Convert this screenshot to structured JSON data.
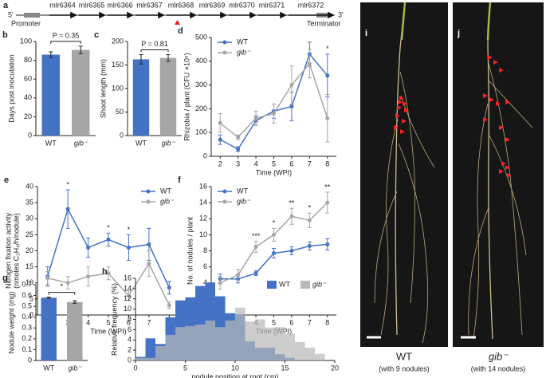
{
  "gene_map": {
    "panel": "a",
    "five_prime": "5'",
    "three_prime": "3'",
    "genes": [
      "mlr6364",
      "mlr6365",
      "mlr6366",
      "mlr6367",
      "mlr6368",
      "mlr6369",
      "mlr6370",
      "mlr6371",
      "mlr6372"
    ],
    "promoter": "Promoter",
    "terminator": "Terminator"
  },
  "chart_data": [
    {
      "panel": "b",
      "type": "bar",
      "categories": [
        "WT",
        "gib⁻"
      ],
      "values": [
        86,
        91
      ],
      "errors": [
        3,
        4
      ],
      "colors": [
        "#4472c4",
        "#a6a6a6"
      ],
      "ylabel": "Days post inoculation",
      "ylim": [
        0,
        100
      ],
      "yticks": [
        0,
        20,
        40,
        60,
        80,
        100
      ],
      "annotation": "P = 0.35"
    },
    {
      "panel": "c",
      "type": "bar",
      "categories": [
        "WT",
        "gib⁻"
      ],
      "values": [
        162,
        165
      ],
      "errors": [
        10,
        7
      ],
      "colors": [
        "#4472c4",
        "#a6a6a6"
      ],
      "ylabel": "Shoot length (mm)",
      "ylim": [
        0,
        200
      ],
      "yticks": [
        0,
        50,
        100,
        150,
        200
      ],
      "annotation": "P = 0.81"
    },
    {
      "panel": "d",
      "type": "line",
      "x": [
        2,
        3,
        4,
        5,
        6,
        7,
        8
      ],
      "series": [
        {
          "name": "WT",
          "color": "#4472c4",
          "values": [
            70,
            30,
            150,
            190,
            210,
            430,
            340
          ],
          "errors": [
            20,
            10,
            20,
            30,
            60,
            50,
            90
          ]
        },
        {
          "name": "gib⁻",
          "color": "#a6a6a6",
          "values": [
            140,
            80,
            160,
            180,
            300,
            390,
            160
          ],
          "errors": [
            40,
            10,
            30,
            40,
            80,
            60,
            100
          ]
        }
      ],
      "xlabel": "Time (WPI)",
      "ylabel": "Rhizobia / plant (CFU ×10⁵)",
      "xlim": [
        1.5,
        8.5
      ],
      "xticks": [
        2,
        3,
        4,
        5,
        6,
        7,
        8
      ],
      "ylim": [
        0,
        500
      ],
      "yticks": [
        0,
        100,
        200,
        300,
        400,
        500
      ],
      "legend": "upper left",
      "markers": [
        {
          "x": 8,
          "text": "*"
        }
      ]
    },
    {
      "panel": "e",
      "type": "line",
      "x": [
        2,
        3,
        4,
        5,
        6,
        7,
        8
      ],
      "series": [
        {
          "name": "WT",
          "color": "#4472c4",
          "values": [
            12,
            33,
            21,
            23.5,
            21,
            22,
            8.5
          ],
          "errors": [
            3,
            6,
            3,
            2,
            4,
            5,
            2
          ]
        },
        {
          "name": "gib⁻",
          "color": "#a6a6a6",
          "values": [
            11.5,
            10,
            12,
            13,
            6,
            16,
            3
          ],
          "errors": [
            2,
            2,
            3,
            2,
            1.5,
            4,
            1
          ]
        }
      ],
      "xlabel": "Time (WPI)",
      "ylabel": [
        "Nitrogen fixation activity",
        "(nmoles C₂H₄/h/nodule)"
      ],
      "xlim": [
        1.5,
        8.5
      ],
      "xticks": [
        2,
        3,
        4,
        5,
        6,
        7,
        8
      ],
      "ylim": [
        0,
        40
      ],
      "yticks": [
        0,
        5,
        10,
        15,
        20,
        25,
        30,
        35,
        40
      ],
      "legend": "upper right",
      "markers": [
        {
          "x": 3,
          "text": "*"
        },
        {
          "x": 5,
          "text": "*"
        },
        {
          "x": 6,
          "text": "*"
        }
      ]
    },
    {
      "panel": "f",
      "type": "line",
      "x": [
        2,
        3,
        4,
        5,
        6,
        7,
        8
      ],
      "series": [
        {
          "name": "WT",
          "color": "#4472c4",
          "values": [
            4.5,
            4.5,
            5.2,
            7.7,
            8,
            8.6,
            8.8
          ],
          "errors": [
            0.6,
            0.5,
            0.3,
            0.6,
            0.5,
            0.5,
            0.7
          ]
        },
        {
          "name": "gib⁻",
          "color": "#a6a6a6",
          "values": [
            4,
            5,
            8.5,
            10,
            12.3,
            11.8,
            14
          ],
          "errors": [
            0.8,
            0.7,
            0.7,
            0.8,
            1,
            0.9,
            1.3
          ]
        }
      ],
      "xlabel": "Time (WPI)",
      "ylabel": "No. of nodules / plant",
      "xlim": [
        1.5,
        8.5
      ],
      "xticks": [
        2,
        3,
        4,
        5,
        6,
        7,
        8
      ],
      "ylim": [
        0,
        16
      ],
      "yticks": [
        0,
        2,
        4,
        6,
        8,
        10,
        12,
        14,
        16
      ],
      "legend": "upper left",
      "markers": [
        {
          "x": 4,
          "text": "***"
        },
        {
          "x": 5,
          "text": "*"
        },
        {
          "x": 6,
          "text": "**"
        },
        {
          "x": 7,
          "text": "*"
        },
        {
          "x": 8,
          "text": "**"
        }
      ]
    },
    {
      "panel": "g",
      "type": "bar",
      "categories": [
        "WT",
        "gib⁻"
      ],
      "values": [
        0.58,
        0.54
      ],
      "errors": [
        0.005,
        0.012
      ],
      "colors": [
        "#4472c4",
        "#a6a6a6"
      ],
      "ylabel": "Nodule weight (mg)",
      "ylim": [
        0,
        0.7
      ],
      "yticks": [
        0,
        0.1,
        0.2,
        0.3,
        0.4,
        0.5,
        0.6,
        0.7
      ],
      "annotation": "*"
    },
    {
      "panel": "h",
      "type": "histogram",
      "bins": [
        0,
        1,
        2,
        3,
        4,
        5,
        6,
        7,
        8,
        9,
        10,
        11,
        12,
        13,
        14,
        15,
        16,
        17,
        18,
        19,
        20
      ],
      "series": [
        {
          "name": "WT",
          "color": "#4472c4",
          "values": [
            0.7,
            4.3,
            3.2,
            8.4,
            11.7,
            12.3,
            14.5,
            15.2,
            12.5,
            9.2,
            9,
            3.7,
            2.5,
            2.5,
            1.2,
            0.5,
            0,
            0,
            0,
            0
          ]
        },
        {
          "name": "gib⁻",
          "color": "#b8b8b8",
          "values": [
            0.5,
            0.5,
            2.8,
            5,
            6.5,
            6.7,
            7,
            7.8,
            6.5,
            7.8,
            10.3,
            7.6,
            8,
            6.4,
            6.5,
            5.2,
            3.6,
            2.5,
            1.3,
            0
          ]
        }
      ],
      "xlabel": "nodule position at root (cm)",
      "ylabel": "Relative frequency (%)",
      "xlim": [
        0,
        20
      ],
      "xticks": [
        0,
        5,
        10,
        15,
        20
      ],
      "ylim": [
        0,
        16
      ],
      "yticks": [
        0,
        2,
        4,
        6,
        8,
        10,
        12,
        14,
        16
      ],
      "legend": "upper right"
    }
  ],
  "photos": [
    {
      "panel": "i",
      "label": "WT",
      "caption": "(with 9 nodules)"
    },
    {
      "panel": "j",
      "label": "gib⁻",
      "caption": "(with 14 nodules)"
    }
  ]
}
